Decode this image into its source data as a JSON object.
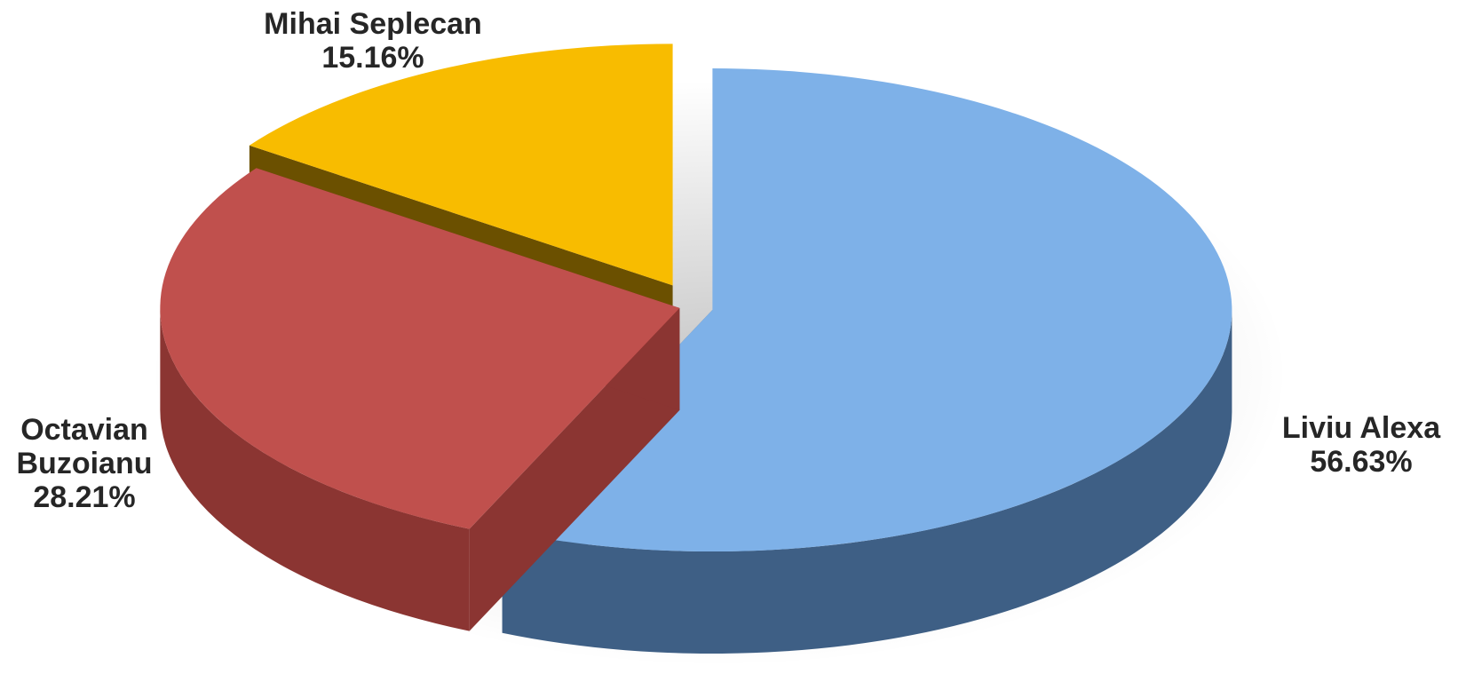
{
  "chart_data": {
    "type": "pie",
    "style": "3d-exploded",
    "slices": [
      {
        "name": "Liviu Alexa",
        "value": 56.63,
        "label": "56.63%",
        "color": "#7EB1E8",
        "side_color": "#3E5F85"
      },
      {
        "name": "Octavian Buzoianu",
        "value": 28.21,
        "label": "28.21%",
        "color": "#C0504D",
        "side_color": "#8B3532"
      },
      {
        "name": "Mihai Seplecan",
        "value": 15.16,
        "label": "15.16%",
        "color": "#F8BC00",
        "side_color": "#6B5000"
      }
    ],
    "legend": "none",
    "title": ""
  }
}
